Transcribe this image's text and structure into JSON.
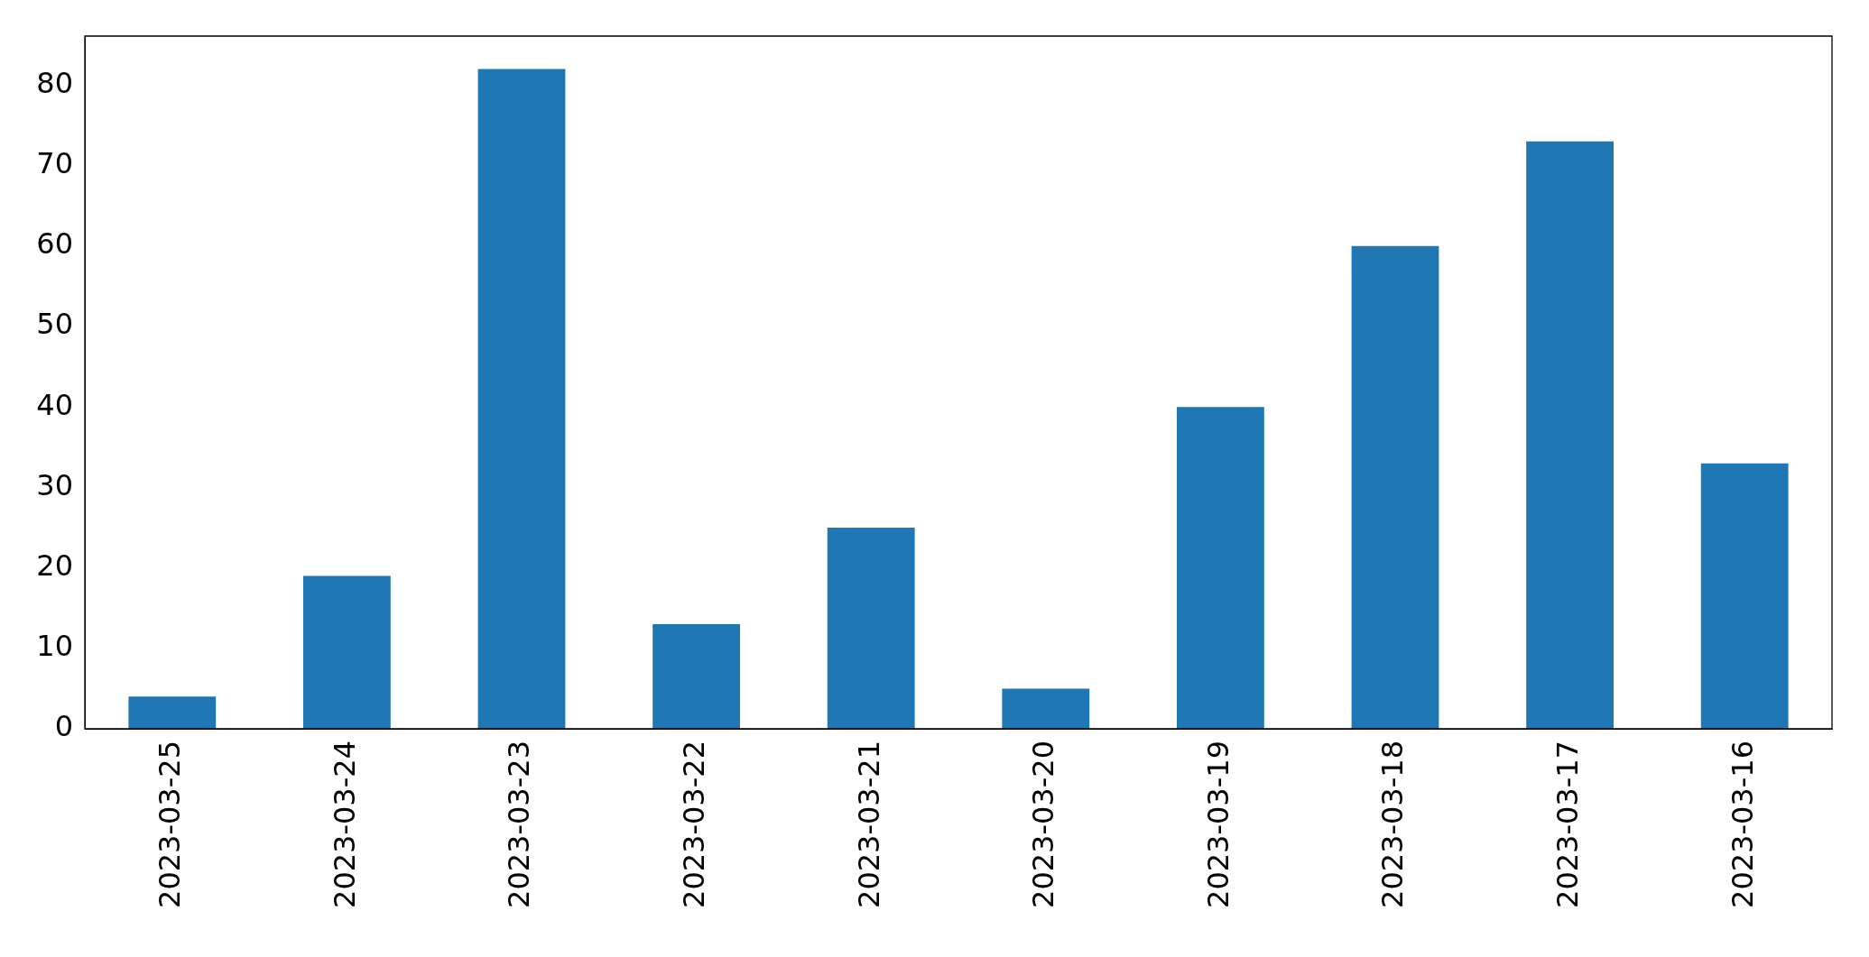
{
  "chart_data": {
    "type": "bar",
    "categories": [
      "2023-03-25",
      "2023-03-24",
      "2023-03-23",
      "2023-03-22",
      "2023-03-21",
      "2023-03-20",
      "2023-03-19",
      "2023-03-18",
      "2023-03-17",
      "2023-03-16"
    ],
    "values": [
      4,
      19,
      82,
      13,
      25,
      5,
      40,
      60,
      73,
      33
    ],
    "color": "#1f77b4",
    "ylim": [
      0,
      86.1
    ],
    "yticks": [
      0,
      10,
      20,
      30,
      40,
      50,
      60,
      70,
      80
    ],
    "grid": false,
    "legend": false
  }
}
